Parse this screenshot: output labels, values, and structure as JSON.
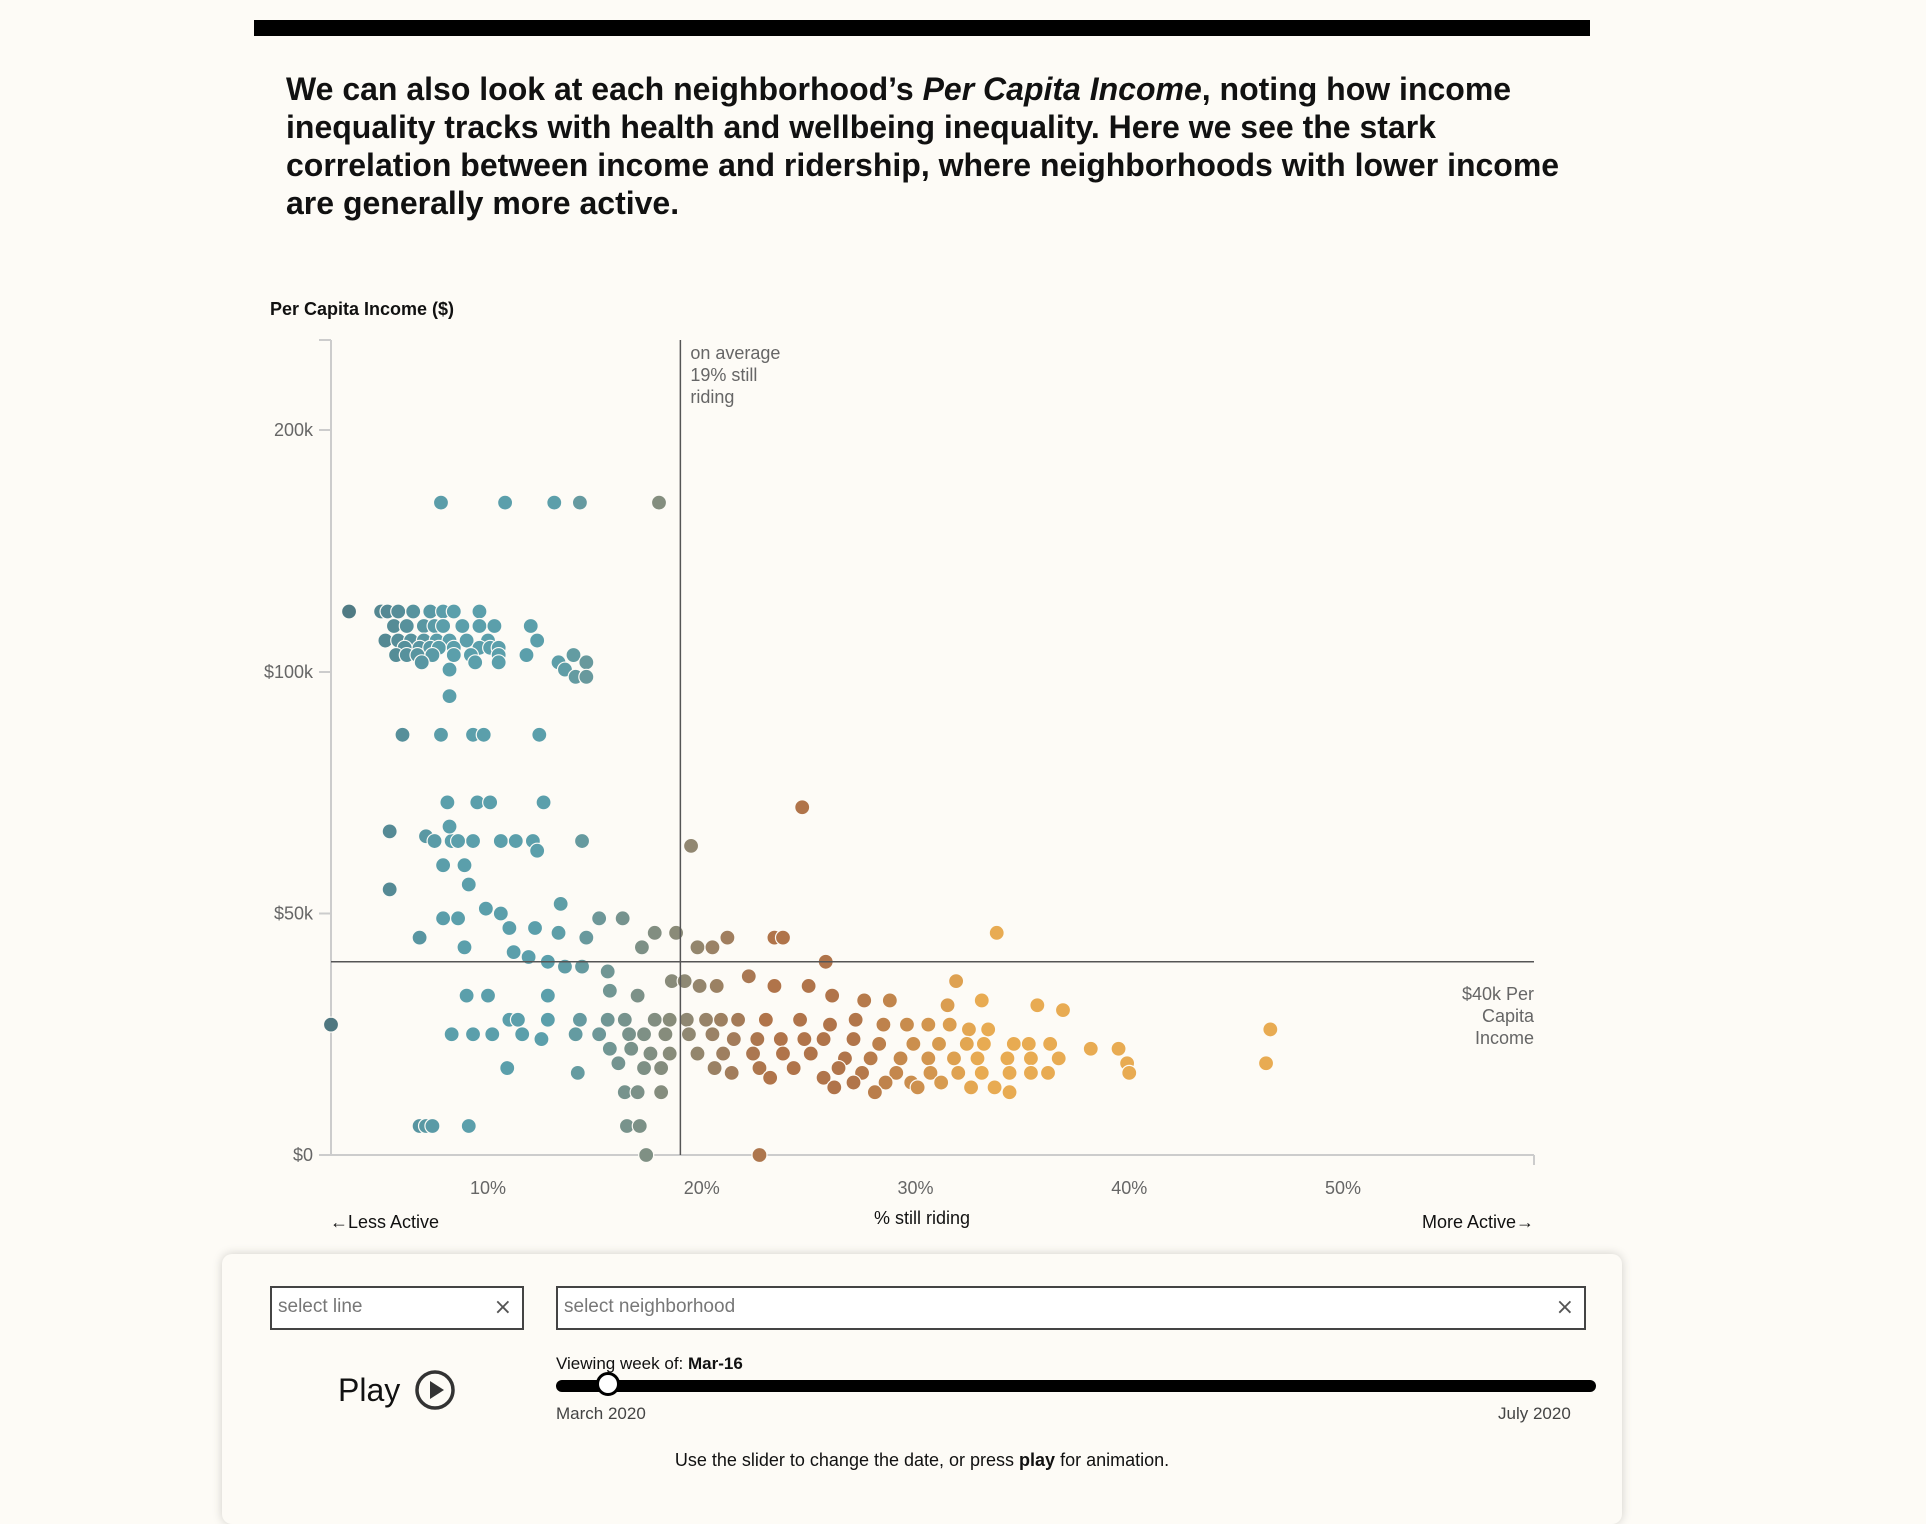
{
  "intro": {
    "before": "We can also look at each neighborhood’s ",
    "emph": "Per Capita Income",
    "after": ", noting how income inequality tracks with health and wellbeing inequality. Here we see the stark correlation between income and ridership, where neighborhoods with lower income are generally more active."
  },
  "chart_data": {
    "type": "scatter",
    "ylabel": "Per Capita Income ($)",
    "xlabel": "% still riding",
    "x_left_label": "←Less Active",
    "x_right_label": "More Active→",
    "xlim": [
      2.7,
      59.2
    ],
    "ylim": [
      0,
      170000
    ],
    "x_ticks": [
      {
        "value": 10,
        "label": "10%"
      },
      {
        "value": 20,
        "label": "20%"
      },
      {
        "value": 30,
        "label": "30%"
      },
      {
        "value": 40,
        "label": "40%"
      },
      {
        "value": 50,
        "label": "50%"
      }
    ],
    "y_ticks": [
      {
        "value": 0,
        "label": "$0"
      },
      {
        "value": 50000,
        "label": "$50k"
      },
      {
        "value": 100000,
        "label": "$100k"
      },
      {
        "value": 200000,
        "label": "200k"
      }
    ],
    "average_line": {
      "x": 19,
      "label_lines": [
        "on average",
        "19% still",
        "riding"
      ]
    },
    "income_line": {
      "y": 40000,
      "label_lines": [
        "$40k Per",
        "Capita",
        "Income"
      ]
    },
    "colors": {
      "low": "#4f7780",
      "mid_teal": "#5b9fab",
      "neutral": "#8c8a76",
      "brown": "#b0744a",
      "orange": "#e8ab52"
    },
    "points": [
      [
        3,
        27000
      ],
      [
        3.5,
        125000
      ],
      [
        7.8,
        170000
      ],
      [
        10.8,
        170000
      ],
      [
        13.1,
        170000
      ],
      [
        14.3,
        170000
      ],
      [
        18,
        170000
      ],
      [
        5,
        125000
      ],
      [
        5.3,
        125000
      ],
      [
        5.8,
        125000
      ],
      [
        6.5,
        125000
      ],
      [
        7.3,
        125000
      ],
      [
        7.9,
        125000
      ],
      [
        8.4,
        125000
      ],
      [
        9.6,
        125000
      ],
      [
        5.6,
        119000
      ],
      [
        6.2,
        119000
      ],
      [
        7,
        119000
      ],
      [
        7.5,
        119000
      ],
      [
        7.9,
        119000
      ],
      [
        8.8,
        119000
      ],
      [
        9.6,
        119000
      ],
      [
        10.3,
        119000
      ],
      [
        12,
        119000
      ],
      [
        5.2,
        113000
      ],
      [
        5.8,
        113000
      ],
      [
        6.4,
        113000
      ],
      [
        7,
        113000
      ],
      [
        7.6,
        113000
      ],
      [
        8.2,
        113000
      ],
      [
        9,
        113000
      ],
      [
        10,
        113000
      ],
      [
        12.3,
        113000
      ],
      [
        6.1,
        110000
      ],
      [
        6.8,
        110000
      ],
      [
        7.3,
        110000
      ],
      [
        7.7,
        110000
      ],
      [
        8.4,
        110000
      ],
      [
        9.6,
        110000
      ],
      [
        10.1,
        110000
      ],
      [
        10.5,
        110000
      ],
      [
        5.7,
        107000
      ],
      [
        6.2,
        107000
      ],
      [
        6.7,
        107000
      ],
      [
        7.4,
        107000
      ],
      [
        8.4,
        107000
      ],
      [
        9.2,
        107000
      ],
      [
        10.5,
        107000
      ],
      [
        11.8,
        107000
      ],
      [
        14,
        107000
      ],
      [
        6.9,
        104000
      ],
      [
        9.4,
        104000
      ],
      [
        10.5,
        104000
      ],
      [
        13.3,
        104000
      ],
      [
        14.6,
        104000
      ],
      [
        8.2,
        101000
      ],
      [
        13.6,
        101000
      ],
      [
        14.1,
        99000
      ],
      [
        14.6,
        99000
      ],
      [
        8.2,
        95000
      ],
      [
        6,
        87000
      ],
      [
        7.8,
        87000
      ],
      [
        9.3,
        87000
      ],
      [
        9.8,
        87000
      ],
      [
        12.4,
        87000
      ],
      [
        8.1,
        73000
      ],
      [
        9.5,
        73000
      ],
      [
        10.1,
        73000
      ],
      [
        12.6,
        73000
      ],
      [
        5.4,
        67000
      ],
      [
        7.1,
        66000
      ],
      [
        7.5,
        65000
      ],
      [
        8.3,
        65000
      ],
      [
        9.3,
        65000
      ],
      [
        10.6,
        65000
      ],
      [
        11.3,
        65000
      ],
      [
        12.1,
        65000
      ],
      [
        14.4,
        65000
      ],
      [
        8.2,
        68000
      ],
      [
        8.6,
        65000
      ],
      [
        12.3,
        63000
      ],
      [
        7.9,
        60000
      ],
      [
        8.9,
        60000
      ],
      [
        9.1,
        56000
      ],
      [
        5.4,
        55000
      ],
      [
        9.9,
        51000
      ],
      [
        10.6,
        50000
      ],
      [
        7.9,
        49000
      ],
      [
        8.6,
        49000
      ],
      [
        11,
        47000
      ],
      [
        12.2,
        47000
      ],
      [
        13.4,
        52000
      ],
      [
        6.8,
        45000
      ],
      [
        8.9,
        43000
      ],
      [
        11.2,
        42000
      ],
      [
        11.9,
        41000
      ],
      [
        13.3,
        46000
      ],
      [
        14.6,
        45000
      ],
      [
        15.2,
        49000
      ],
      [
        16.3,
        49000
      ],
      [
        12.8,
        40000
      ],
      [
        13.6,
        39000
      ],
      [
        14.4,
        39000
      ],
      [
        15.6,
        38000
      ],
      [
        17.2,
        43000
      ],
      [
        17.8,
        46000
      ],
      [
        18.8,
        46000
      ],
      [
        19.8,
        43000
      ],
      [
        20.5,
        43000
      ],
      [
        21.2,
        45000
      ],
      [
        23.4,
        45000
      ],
      [
        23.8,
        45000
      ],
      [
        25.8,
        40000
      ],
      [
        22.2,
        37000
      ],
      [
        23.4,
        35000
      ],
      [
        18.6,
        36000
      ],
      [
        19.2,
        36000
      ],
      [
        19.9,
        35000
      ],
      [
        20.7,
        35000
      ],
      [
        25,
        35000
      ],
      [
        9,
        33000
      ],
      [
        10,
        33000
      ],
      [
        12.8,
        33000
      ],
      [
        15.7,
        34000
      ],
      [
        17,
        33000
      ],
      [
        19.5,
        64000
      ],
      [
        24.7,
        72000
      ],
      [
        33.8,
        46000
      ],
      [
        31.9,
        36000
      ],
      [
        26.1,
        33000
      ],
      [
        27.6,
        32000
      ],
      [
        28.8,
        32000
      ],
      [
        31.5,
        31000
      ],
      [
        33.1,
        32000
      ],
      [
        35.7,
        31000
      ],
      [
        36.9,
        30000
      ],
      [
        11,
        28000
      ],
      [
        11.4,
        28000
      ],
      [
        12.8,
        28000
      ],
      [
        14.3,
        28000
      ],
      [
        15.6,
        28000
      ],
      [
        16.4,
        28000
      ],
      [
        17.8,
        28000
      ],
      [
        18.5,
        28000
      ],
      [
        19.3,
        28000
      ],
      [
        20.2,
        28000
      ],
      [
        20.9,
        28000
      ],
      [
        21.7,
        28000
      ],
      [
        23,
        28000
      ],
      [
        24.6,
        28000
      ],
      [
        26,
        27000
      ],
      [
        27.2,
        28000
      ],
      [
        28.5,
        27000
      ],
      [
        29.6,
        27000
      ],
      [
        30.6,
        27000
      ],
      [
        31.6,
        27000
      ],
      [
        32.5,
        26000
      ],
      [
        33.4,
        26000
      ],
      [
        8.3,
        25000
      ],
      [
        9.3,
        25000
      ],
      [
        10.2,
        25000
      ],
      [
        11.6,
        25000
      ],
      [
        12.5,
        24000
      ],
      [
        14.1,
        25000
      ],
      [
        15.2,
        25000
      ],
      [
        16.6,
        25000
      ],
      [
        17.3,
        25000
      ],
      [
        18.3,
        25000
      ],
      [
        19.4,
        25000
      ],
      [
        20.5,
        25000
      ],
      [
        21.5,
        24000
      ],
      [
        22.6,
        24000
      ],
      [
        23.7,
        24000
      ],
      [
        24.8,
        24000
      ],
      [
        25.7,
        24000
      ],
      [
        27.1,
        24000
      ],
      [
        28.3,
        23000
      ],
      [
        29.9,
        23000
      ],
      [
        31.1,
        23000
      ],
      [
        32.4,
        23000
      ],
      [
        33.2,
        23000
      ],
      [
        34.6,
        23000
      ],
      [
        35.3,
        23000
      ],
      [
        36.3,
        23000
      ],
      [
        38.2,
        22000
      ],
      [
        39.5,
        22000
      ],
      [
        15.7,
        22000
      ],
      [
        16.7,
        22000
      ],
      [
        17.6,
        21000
      ],
      [
        18.5,
        21000
      ],
      [
        19.8,
        21000
      ],
      [
        21,
        21000
      ],
      [
        22.4,
        21000
      ],
      [
        23.8,
        21000
      ],
      [
        25.1,
        21000
      ],
      [
        26.7,
        20000
      ],
      [
        27.9,
        20000
      ],
      [
        29.3,
        20000
      ],
      [
        30.6,
        20000
      ],
      [
        31.8,
        20000
      ],
      [
        32.9,
        20000
      ],
      [
        34.3,
        20000
      ],
      [
        35.4,
        20000
      ],
      [
        36.7,
        20000
      ],
      [
        16.1,
        19000
      ],
      [
        17.3,
        18000
      ],
      [
        18.1,
        18000
      ],
      [
        20.6,
        18000
      ],
      [
        22.7,
        18000
      ],
      [
        24.3,
        18000
      ],
      [
        26.4,
        18000
      ],
      [
        27.5,
        17000
      ],
      [
        29.1,
        17000
      ],
      [
        30.7,
        17000
      ],
      [
        32,
        17000
      ],
      [
        33.1,
        17000
      ],
      [
        34.4,
        17000
      ],
      [
        35.4,
        17000
      ],
      [
        36.2,
        17000
      ],
      [
        39.9,
        19000
      ],
      [
        46.4,
        19000
      ],
      [
        46.6,
        26000
      ],
      [
        10.9,
        18000
      ],
      [
        14.2,
        17000
      ],
      [
        25.7,
        16000
      ],
      [
        27.1,
        15000
      ],
      [
        28.6,
        15000
      ],
      [
        29.8,
        15000
      ],
      [
        31.2,
        15000
      ],
      [
        32.6,
        14000
      ],
      [
        33.7,
        14000
      ],
      [
        34.4,
        13000
      ],
      [
        26.2,
        14000
      ],
      [
        28.1,
        13000
      ],
      [
        30.1,
        14000
      ],
      [
        16.4,
        13000
      ],
      [
        17,
        13000
      ],
      [
        18.1,
        13000
      ],
      [
        23.2,
        16000
      ],
      [
        21.4,
        17000
      ],
      [
        6.8,
        6000
      ],
      [
        7.1,
        6000
      ],
      [
        7.4,
        6000
      ],
      [
        9.1,
        6000
      ],
      [
        16.5,
        6000
      ],
      [
        17.1,
        6000
      ],
      [
        17.4,
        0
      ],
      [
        22.7,
        0
      ],
      [
        40,
        17000
      ]
    ]
  },
  "controls": {
    "line_placeholder": "select line",
    "hood_placeholder": "select neighborhood",
    "clear_glyph": "×",
    "play_label": "Play",
    "week_prefix": "Viewing week of:",
    "week_value": "Mar-16",
    "slider_start": "March 2020",
    "slider_end": "July 2020",
    "slider_position": 0.05,
    "help_before": "Use the slider to change the date, or press ",
    "help_bold": "play",
    "help_after": " for animation."
  }
}
